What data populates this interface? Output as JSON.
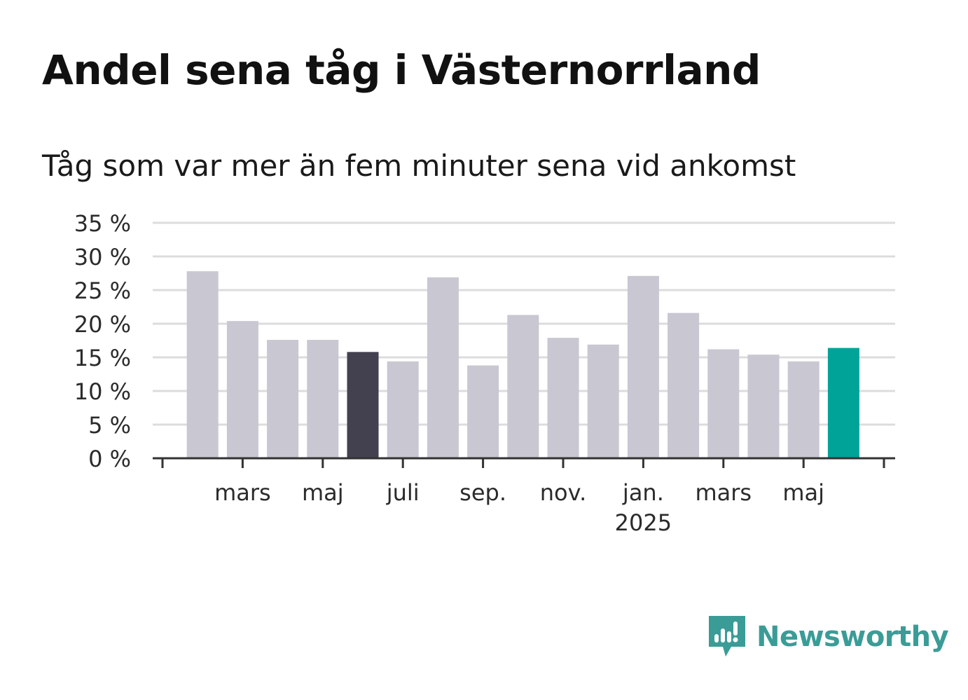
{
  "chart_data": {
    "type": "bar",
    "title": "Andel sena tåg i Västernorrland",
    "subtitle": "Tåg som var mer än fem minuter sena vid ankomst",
    "categories": [
      "2024-02",
      "2024-03",
      "2024-04",
      "2024-05",
      "2024-06",
      "2024-07",
      "2024-08",
      "2024-09",
      "2024-10",
      "2024-11",
      "2024-12",
      "2025-01",
      "2025-02",
      "2025-03",
      "2025-04",
      "2025-05",
      "2025-06"
    ],
    "values": [
      27.8,
      20.4,
      17.6,
      17.6,
      15.8,
      14.4,
      26.9,
      13.8,
      21.3,
      17.9,
      16.9,
      27.1,
      21.6,
      16.2,
      15.4,
      14.4,
      16.4
    ],
    "ylim": [
      0,
      35
    ],
    "yticks": [
      0,
      5,
      10,
      15,
      20,
      25,
      30,
      35
    ],
    "ytick_labels": [
      "0 %",
      "5 %",
      "10 %",
      "15 %",
      "20 %",
      "25 %",
      "30 %",
      "35 %"
    ],
    "xtick_labels": [
      {
        "category": "2024-03",
        "label": "mars"
      },
      {
        "category": "2024-05",
        "label": "maj"
      },
      {
        "category": "2024-07",
        "label": "juli"
      },
      {
        "category": "2024-09",
        "label": "sep."
      },
      {
        "category": "2024-11",
        "label": "nov."
      },
      {
        "category": "2025-01",
        "label": "jan.",
        "sublabel": "2025"
      },
      {
        "category": "2025-03",
        "label": "mars"
      },
      {
        "category": "2025-05",
        "label": "maj"
      }
    ],
    "highlights": {
      "2024-06": "dark",
      "2025-06": "accent"
    },
    "grid": true,
    "xlabel": "",
    "ylabel": ""
  },
  "colors": {
    "bar": "#c8c7d2",
    "bar_dark": "#43414f",
    "bar_accent": "#00a398",
    "grid": "#dcdcdc",
    "axis": "#333333",
    "brand": "#3b9c97"
  },
  "brand": {
    "name": "Newsworthy",
    "icon": "newsworthy-logo-icon"
  }
}
